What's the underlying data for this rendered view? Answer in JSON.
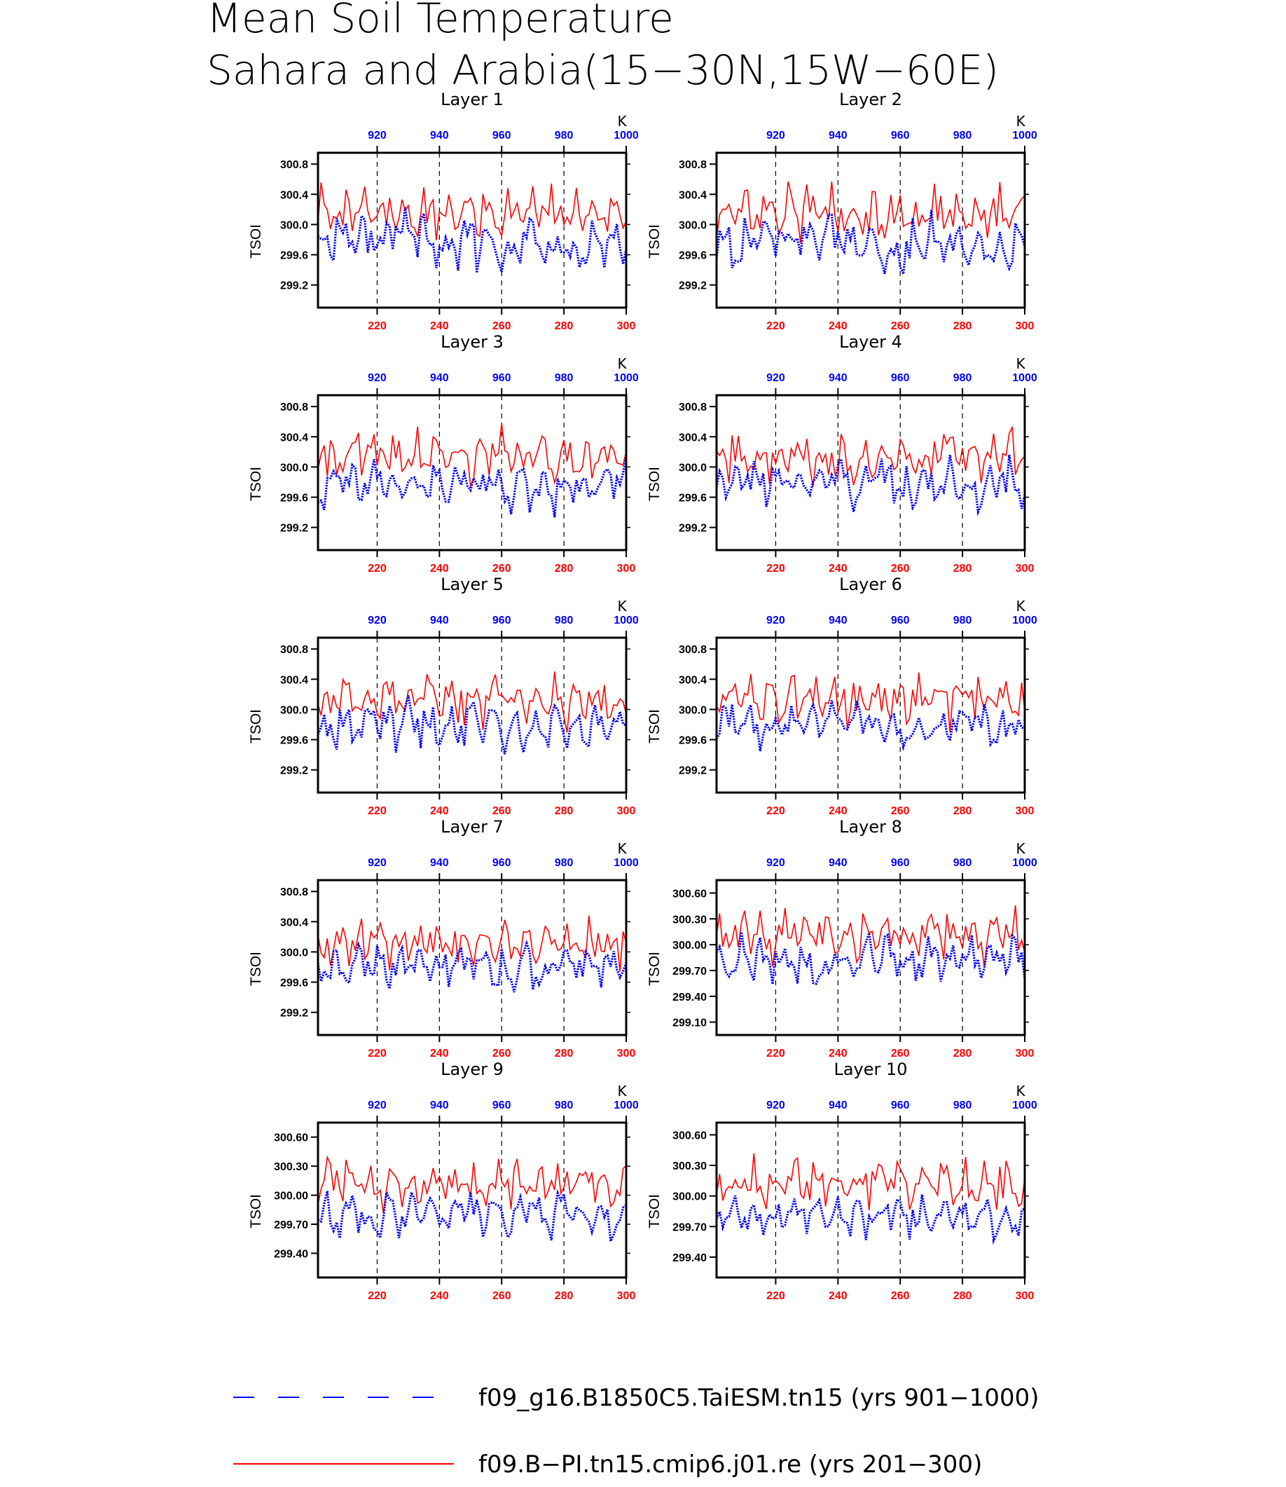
{
  "figure": {
    "title_line1": "Mean Soil Temperature",
    "title_line2": "Sahara and Arabia(15−30N,15W−60E)"
  },
  "colors": {
    "red_series": "#ff0000",
    "blue_series": "#0000ff",
    "axis": "#000000",
    "grid": "#000000"
  },
  "legend": {
    "entries": [
      {
        "label": "f09_g16.B1850C5.TaiESM.tn15 (yrs 901−1000)",
        "color": "#0000ff",
        "style": "dashed"
      },
      {
        "label": "f09.B−PI.tn15.cmip6.j01.re (yrs 201−300)",
        "color": "#ff0000",
        "style": "solid"
      }
    ]
  },
  "chart_data": [
    {
      "type": "line",
      "title": "Layer 1",
      "ylabel": "TSOI",
      "top_axis_unit": "K",
      "x_bottom": {
        "range": [
          201,
          300
        ],
        "ticks": [
          "220",
          "240",
          "260",
          "280",
          "300"
        ],
        "color": "#ff0000"
      },
      "x_top": {
        "range": [
          901,
          1000
        ],
        "ticks": [
          "920",
          "940",
          "960",
          "980",
          "1000"
        ],
        "color": "#0000ff"
      },
      "ylim": [
        298.9,
        300.95
      ],
      "yticks": [
        "299.2",
        "299.6",
        "300.0",
        "300.4",
        "300.8"
      ],
      "grid": "dashed vertical at top-axis ticks",
      "series": [
        {
          "name": "f09.B−PI.tn15.cmip6.j01.re (yrs 201−300)",
          "color": "#ff0000",
          "style": "solid",
          "mean": 300.15,
          "amp": 0.26
        },
        {
          "name": "f09_g16.B1850C5.TaiESM.tn15 (yrs 901−1000)",
          "color": "#0000ff",
          "style": "dotted",
          "mean": 299.78,
          "amp": 0.36
        }
      ]
    },
    {
      "type": "line",
      "title": "Layer 2",
      "ylabel": "TSOI",
      "top_axis_unit": "K",
      "x_bottom": {
        "range": [
          201,
          300
        ],
        "ticks": [
          "220",
          "240",
          "260",
          "280",
          "300"
        ],
        "color": "#ff0000"
      },
      "x_top": {
        "range": [
          901,
          1000
        ],
        "ticks": [
          "920",
          "940",
          "960",
          "980",
          "1000"
        ],
        "color": "#0000ff"
      },
      "ylim": [
        298.9,
        300.95
      ],
      "yticks": [
        "299.2",
        "299.6",
        "300.0",
        "300.4",
        "300.8"
      ],
      "grid": "dashed vertical at top-axis ticks",
      "series": [
        {
          "name": "f09.B−PI.tn15.cmip6.j01.re (yrs 201−300)",
          "color": "#ff0000",
          "style": "solid",
          "mean": 300.15,
          "amp": 0.26
        },
        {
          "name": "f09_g16.B1850C5.TaiESM.tn15 (yrs 901−1000)",
          "color": "#0000ff",
          "style": "dotted",
          "mean": 299.78,
          "amp": 0.35
        }
      ]
    },
    {
      "type": "line",
      "title": "Layer 3",
      "ylabel": "TSOI",
      "top_axis_unit": "K",
      "x_bottom": {
        "range": [
          201,
          300
        ],
        "ticks": [
          "220",
          "240",
          "260",
          "280",
          "300"
        ],
        "color": "#ff0000"
      },
      "x_top": {
        "range": [
          901,
          1000
        ],
        "ticks": [
          "920",
          "940",
          "960",
          "980",
          "1000"
        ],
        "color": "#0000ff"
      },
      "ylim": [
        298.9,
        300.95
      ],
      "yticks": [
        "299.2",
        "299.6",
        "300.0",
        "300.4",
        "300.8"
      ],
      "grid": "dashed vertical at top-axis ticks",
      "series": [
        {
          "name": "f09.B−PI.tn15.cmip6.j01.re (yrs 201−300)",
          "color": "#ff0000",
          "style": "solid",
          "mean": 300.14,
          "amp": 0.26
        },
        {
          "name": "f09_g16.B1850C5.TaiESM.tn15 (yrs 901−1000)",
          "color": "#0000ff",
          "style": "dotted",
          "mean": 299.79,
          "amp": 0.33
        }
      ]
    },
    {
      "type": "line",
      "title": "Layer 4",
      "ylabel": "TSOI",
      "top_axis_unit": "K",
      "x_bottom": {
        "range": [
          201,
          300
        ],
        "ticks": [
          "220",
          "240",
          "260",
          "280",
          "300"
        ],
        "color": "#ff0000"
      },
      "x_top": {
        "range": [
          901,
          1000
        ],
        "ticks": [
          "920",
          "940",
          "960",
          "980",
          "1000"
        ],
        "color": "#0000ff"
      },
      "ylim": [
        298.9,
        300.95
      ],
      "yticks": [
        "299.2",
        "299.6",
        "300.0",
        "300.4",
        "300.8"
      ],
      "grid": "dashed vertical at top-axis ticks",
      "series": [
        {
          "name": "f09.B−PI.tn15.cmip6.j01.re (yrs 201−300)",
          "color": "#ff0000",
          "style": "solid",
          "mean": 300.14,
          "amp": 0.25
        },
        {
          "name": "f09_g16.B1850C5.TaiESM.tn15 (yrs 901−1000)",
          "color": "#0000ff",
          "style": "dotted",
          "mean": 299.79,
          "amp": 0.32
        }
      ]
    },
    {
      "type": "line",
      "title": "Layer 5",
      "ylabel": "TSOI",
      "top_axis_unit": "K",
      "x_bottom": {
        "range": [
          201,
          300
        ],
        "ticks": [
          "220",
          "240",
          "260",
          "280",
          "300"
        ],
        "color": "#ff0000"
      },
      "x_top": {
        "range": [
          901,
          1000
        ],
        "ticks": [
          "920",
          "940",
          "960",
          "980",
          "1000"
        ],
        "color": "#0000ff"
      },
      "ylim": [
        298.9,
        300.95
      ],
      "yticks": [
        "299.2",
        "299.6",
        "300.0",
        "300.4",
        "300.8"
      ],
      "grid": "dashed vertical at top-axis ticks",
      "series": [
        {
          "name": "f09.B−PI.tn15.cmip6.j01.re (yrs 201−300)",
          "color": "#ff0000",
          "style": "solid",
          "mean": 300.13,
          "amp": 0.25
        },
        {
          "name": "f09_g16.B1850C5.TaiESM.tn15 (yrs 901−1000)",
          "color": "#0000ff",
          "style": "dotted",
          "mean": 299.8,
          "amp": 0.31
        }
      ]
    },
    {
      "type": "line",
      "title": "Layer 6",
      "ylabel": "TSOI",
      "top_axis_unit": "K",
      "x_bottom": {
        "range": [
          201,
          300
        ],
        "ticks": [
          "220",
          "240",
          "260",
          "280",
          "300"
        ],
        "color": "#ff0000"
      },
      "x_top": {
        "range": [
          901,
          1000
        ],
        "ticks": [
          "920",
          "940",
          "960",
          "980",
          "1000"
        ],
        "color": "#0000ff"
      },
      "ylim": [
        298.9,
        300.95
      ],
      "yticks": [
        "299.2",
        "299.6",
        "300.0",
        "300.4",
        "300.8"
      ],
      "grid": "dashed vertical at top-axis ticks",
      "series": [
        {
          "name": "f09.B−PI.tn15.cmip6.j01.re (yrs 201−300)",
          "color": "#ff0000",
          "style": "solid",
          "mean": 300.13,
          "amp": 0.25
        },
        {
          "name": "f09_g16.B1850C5.TaiESM.tn15 (yrs 901−1000)",
          "color": "#0000ff",
          "style": "dotted",
          "mean": 299.8,
          "amp": 0.3
        }
      ]
    },
    {
      "type": "line",
      "title": "Layer 7",
      "ylabel": "TSOI",
      "top_axis_unit": "K",
      "x_bottom": {
        "range": [
          201,
          300
        ],
        "ticks": [
          "220",
          "240",
          "260",
          "280",
          "300"
        ],
        "color": "#ff0000"
      },
      "x_top": {
        "range": [
          901,
          1000
        ],
        "ticks": [
          "920",
          "940",
          "960",
          "980",
          "1000"
        ],
        "color": "#0000ff"
      },
      "ylim": [
        298.9,
        300.95
      ],
      "yticks": [
        "299.2",
        "299.6",
        "300.0",
        "300.4",
        "300.8"
      ],
      "grid": "dashed vertical at top-axis ticks",
      "series": [
        {
          "name": "f09.B−PI.tn15.cmip6.j01.re (yrs 201−300)",
          "color": "#ff0000",
          "style": "solid",
          "mean": 300.12,
          "amp": 0.24
        },
        {
          "name": "f09_g16.B1850C5.TaiESM.tn15 (yrs 901−1000)",
          "color": "#0000ff",
          "style": "dotted",
          "mean": 299.8,
          "amp": 0.28
        }
      ]
    },
    {
      "type": "line",
      "title": "Layer 8",
      "ylabel": "TSOI",
      "top_axis_unit": "K",
      "x_bottom": {
        "range": [
          201,
          300
        ],
        "ticks": [
          "220",
          "240",
          "260",
          "280",
          "300"
        ],
        "color": "#ff0000"
      },
      "x_top": {
        "range": [
          901,
          1000
        ],
        "ticks": [
          "920",
          "940",
          "960",
          "980",
          "1000"
        ],
        "color": "#0000ff"
      },
      "ylim": [
        298.95,
        300.75
      ],
      "yticks": [
        "299.10",
        "299.40",
        "299.70",
        "300.00",
        "300.30",
        "300.60"
      ],
      "grid": "dashed vertical at top-axis ticks",
      "series": [
        {
          "name": "f09.B−PI.tn15.cmip6.j01.re (yrs 201−300)",
          "color": "#ff0000",
          "style": "solid",
          "mean": 300.12,
          "amp": 0.22
        },
        {
          "name": "f09_g16.B1850C5.TaiESM.tn15 (yrs 901−1000)",
          "color": "#0000ff",
          "style": "dotted",
          "mean": 299.8,
          "amp": 0.26
        }
      ]
    },
    {
      "type": "line",
      "title": "Layer 9",
      "ylabel": "TSOI",
      "top_axis_unit": "K",
      "x_bottom": {
        "range": [
          201,
          300
        ],
        "ticks": [
          "220",
          "240",
          "260",
          "280",
          "300"
        ],
        "color": "#ff0000"
      },
      "x_top": {
        "range": [
          901,
          1000
        ],
        "ticks": [
          "920",
          "940",
          "960",
          "980",
          "1000"
        ],
        "color": "#0000ff"
      },
      "ylim": [
        299.15,
        300.75
      ],
      "yticks": [
        "299.40",
        "299.70",
        "300.00",
        "300.30",
        "300.60"
      ],
      "grid": "dashed vertical at top-axis ticks",
      "series": [
        {
          "name": "f09.B−PI.tn15.cmip6.j01.re (yrs 201−300)",
          "color": "#ff0000",
          "style": "solid",
          "mean": 300.12,
          "amp": 0.2
        },
        {
          "name": "f09_g16.B1850C5.TaiESM.tn15 (yrs 901−1000)",
          "color": "#0000ff",
          "style": "dotted",
          "mean": 299.8,
          "amp": 0.22
        }
      ]
    },
    {
      "type": "line",
      "title": "Layer 10",
      "ylabel": "TSOI",
      "top_axis_unit": "K",
      "x_bottom": {
        "range": [
          201,
          300
        ],
        "ticks": [
          "220",
          "240",
          "260",
          "280",
          "300"
        ],
        "color": "#ff0000"
      },
      "x_top": {
        "range": [
          901,
          1000
        ],
        "ticks": [
          "920",
          "940",
          "960",
          "980",
          "1000"
        ],
        "color": "#0000ff"
      },
      "ylim": [
        299.2,
        300.72
      ],
      "yticks": [
        "299.40",
        "299.70",
        "300.00",
        "300.30",
        "300.60"
      ],
      "grid": "dashed vertical at top-axis ticks",
      "series": [
        {
          "name": "f09.B−PI.tn15.cmip6.j01.re (yrs 201−300)",
          "color": "#ff0000",
          "style": "solid",
          "mean": 300.12,
          "amp": 0.18
        },
        {
          "name": "f09_g16.B1850C5.TaiESM.tn15 (yrs 901−1000)",
          "color": "#0000ff",
          "style": "dotted",
          "mean": 299.8,
          "amp": 0.19
        }
      ]
    }
  ]
}
